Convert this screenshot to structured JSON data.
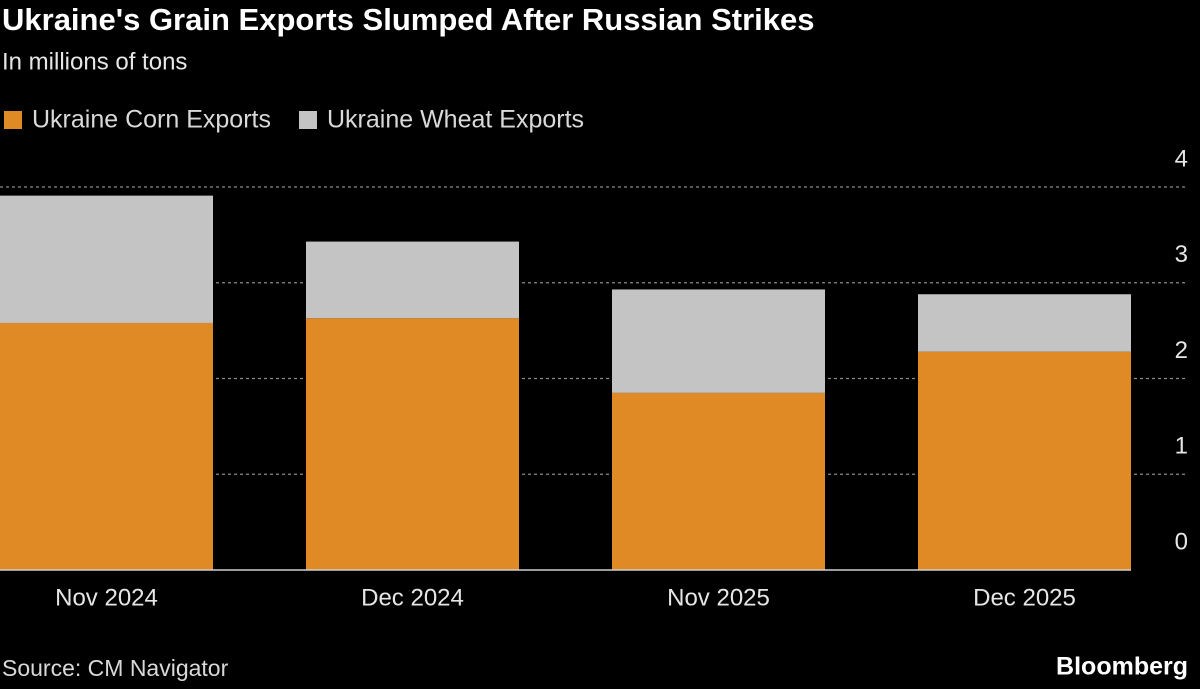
{
  "chart_data": {
    "type": "stacked_bar",
    "title": "Ukraine's Grain Exports Slumped After Russian Strikes",
    "subtitle": "In millions of tons",
    "categories": [
      "Nov 2024",
      "Dec 2024",
      "Nov 2025",
      "Dec 2025"
    ],
    "series": [
      {
        "name": "Ukraine Corn Exports",
        "color": "#e08a26",
        "values": [
          2.58,
          2.63,
          1.85,
          2.28
        ]
      },
      {
        "name": "Ukraine Wheat Exports",
        "color": "#c4c4c4",
        "values": [
          1.33,
          0.8,
          1.08,
          0.6
        ]
      }
    ],
    "ylim": [
      0,
      4
    ],
    "yticks": [
      0,
      1,
      2,
      3,
      4
    ],
    "grid": true,
    "source": "Source: CM Navigator",
    "branding": "Bloomberg"
  }
}
